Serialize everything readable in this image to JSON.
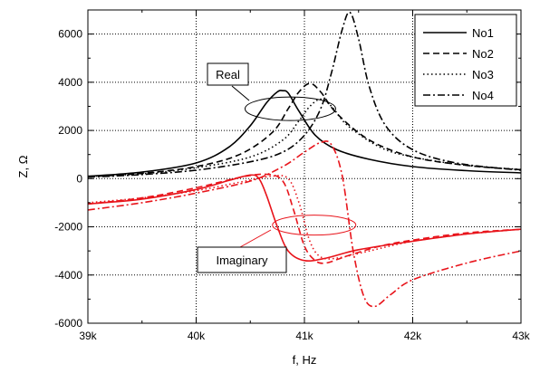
{
  "chart_data": {
    "type": "line",
    "xlabel": "f, Hz",
    "ylabel": "Z, Ω",
    "xlim": [
      39000,
      43000
    ],
    "ylim": [
      -6000,
      7000
    ],
    "x_ticks": [
      39000,
      40000,
      41000,
      42000,
      43000
    ],
    "x_tick_labels": [
      "39k",
      "40k",
      "41k",
      "42k",
      "43k"
    ],
    "y_ticks": [
      -6000,
      -4000,
      -2000,
      0,
      2000,
      4000,
      6000
    ],
    "y_tick_labels": [
      "-6000",
      "-4000",
      "-2000",
      "0",
      "2000",
      "4000",
      "6000"
    ],
    "grid": true,
    "legend_position": "top-right",
    "legend": [
      "No1",
      "No2",
      "No3",
      "No4"
    ],
    "colors": {
      "real": "#000000",
      "imaginary": "#e8141b"
    },
    "annotations": [
      {
        "text": "Real",
        "target": "real part curves"
      },
      {
        "text": "Imaginary",
        "target": "imaginary part curves"
      }
    ],
    "series": [
      {
        "name": "No1",
        "component": "real",
        "dash": "solid",
        "x": [
          39000,
          39500,
          40000,
          40300,
          40500,
          40650,
          40750,
          40800,
          40850,
          40950,
          41100,
          41300,
          41600,
          42000,
          42500,
          43000
        ],
        "y": [
          100,
          270,
          650,
          1300,
          2200,
          3150,
          3600,
          3650,
          3550,
          2800,
          1800,
          1200,
          800,
          500,
          330,
          240
        ]
      },
      {
        "name": "No2",
        "component": "real",
        "dash": "dash",
        "x": [
          39000,
          39500,
          40000,
          40400,
          40700,
          40850,
          40950,
          41050,
          41150,
          41300,
          41600,
          42000,
          42500,
          43000
        ],
        "y": [
          80,
          220,
          500,
          1000,
          1900,
          2900,
          3600,
          3950,
          3600,
          2700,
          1600,
          900,
          550,
          370
        ]
      },
      {
        "name": "No3",
        "component": "real",
        "dash": "dot",
        "x": [
          39000,
          39500,
          40000,
          40500,
          40800,
          40950,
          41050,
          41150,
          41250,
          41400,
          41700,
          42000,
          42500,
          43000
        ],
        "y": [
          90,
          200,
          450,
          900,
          1600,
          2400,
          3000,
          3300,
          3000,
          2200,
          1300,
          900,
          550,
          380
        ]
      },
      {
        "name": "No4",
        "component": "real",
        "dash": "dashdot",
        "x": [
          39000,
          39500,
          40000,
          40500,
          40800,
          41000,
          41150,
          41250,
          41350,
          41420,
          41500,
          41600,
          41750,
          42000,
          42400,
          43000
        ],
        "y": [
          60,
          170,
          350,
          700,
          1100,
          1800,
          2900,
          4400,
          6200,
          6900,
          5800,
          3800,
          2200,
          1200,
          650,
          350
        ]
      },
      {
        "name": "No1",
        "component": "imaginary",
        "dash": "solid",
        "x": [
          39000,
          39500,
          40000,
          40300,
          40500,
          40580,
          40650,
          40750,
          40850,
          41000,
          41200,
          41500,
          42000,
          42500,
          43000
        ],
        "y": [
          -1050,
          -850,
          -450,
          -80,
          150,
          0,
          -700,
          -2000,
          -3000,
          -3400,
          -3300,
          -2950,
          -2600,
          -2300,
          -2100
        ]
      },
      {
        "name": "No2",
        "component": "imaginary",
        "dash": "dash",
        "x": [
          39000,
          39500,
          40000,
          40400,
          40650,
          40800,
          40900,
          41000,
          41100,
          41200,
          41400,
          41700,
          42000,
          42500,
          43000
        ],
        "y": [
          -1050,
          -800,
          -380,
          50,
          180,
          -100,
          -1300,
          -2800,
          -3400,
          -3500,
          -3200,
          -2800,
          -2550,
          -2250,
          -2100
        ]
      },
      {
        "name": "No3",
        "component": "imaginary",
        "dash": "dot",
        "x": [
          39000,
          39500,
          40000,
          40400,
          40700,
          40850,
          40950,
          41050,
          41150,
          41300,
          41600,
          42000,
          42500,
          43000
        ],
        "y": [
          -1000,
          -800,
          -500,
          -150,
          100,
          0,
          -1000,
          -2600,
          -3250,
          -3300,
          -3000,
          -2600,
          -2300,
          -2100
        ]
      },
      {
        "name": "No4",
        "component": "imaginary",
        "dash": "dashdot",
        "x": [
          39000,
          39500,
          40000,
          40500,
          40800,
          41000,
          41150,
          41250,
          41350,
          41450,
          41550,
          41650,
          41800,
          42000,
          42500,
          43000
        ],
        "y": [
          -1300,
          -1000,
          -600,
          -100,
          500,
          1100,
          1500,
          1400,
          100,
          -3000,
          -4900,
          -5300,
          -4800,
          -4200,
          -3500,
          -3000
        ]
      }
    ]
  }
}
